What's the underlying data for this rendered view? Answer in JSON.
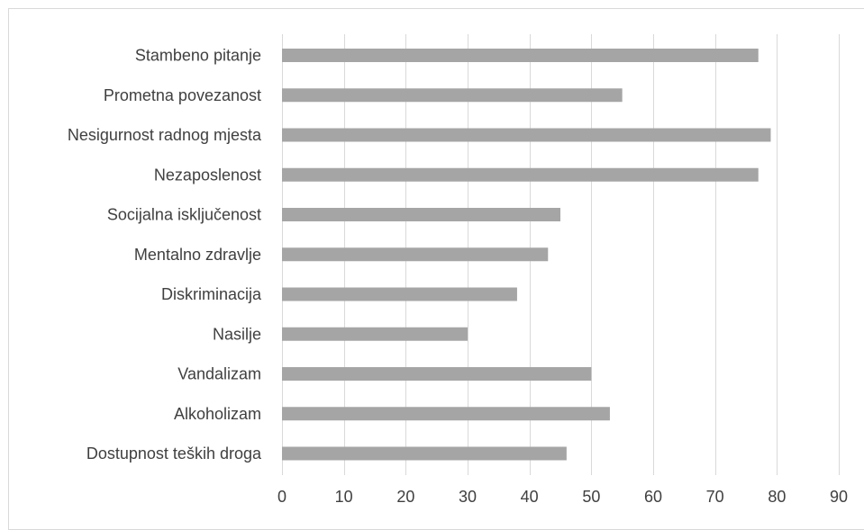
{
  "chart_data": {
    "type": "bar",
    "orientation": "horizontal",
    "categories": [
      "Stambeno pitanje ",
      "Prometna povezanost",
      "Nesigurnost radnog mjesta",
      "Nezaposlenost",
      "Socijalna isključenost",
      "Mentalno zdravlje",
      "Diskriminacija",
      "Nasilje ",
      "Vandalizam",
      "Alkoholizam",
      "Dostupnost teških droga"
    ],
    "values": [
      77,
      55,
      79,
      77,
      45,
      43,
      38,
      30,
      50,
      53,
      46
    ],
    "xlim": [
      0,
      90
    ],
    "xticks": [
      0,
      10,
      20,
      30,
      40,
      50,
      60,
      70,
      80,
      90
    ],
    "grid": true,
    "colors": {
      "bar": "#a5a5a5",
      "grid": "#d9d9d9",
      "text": "#404040"
    }
  }
}
